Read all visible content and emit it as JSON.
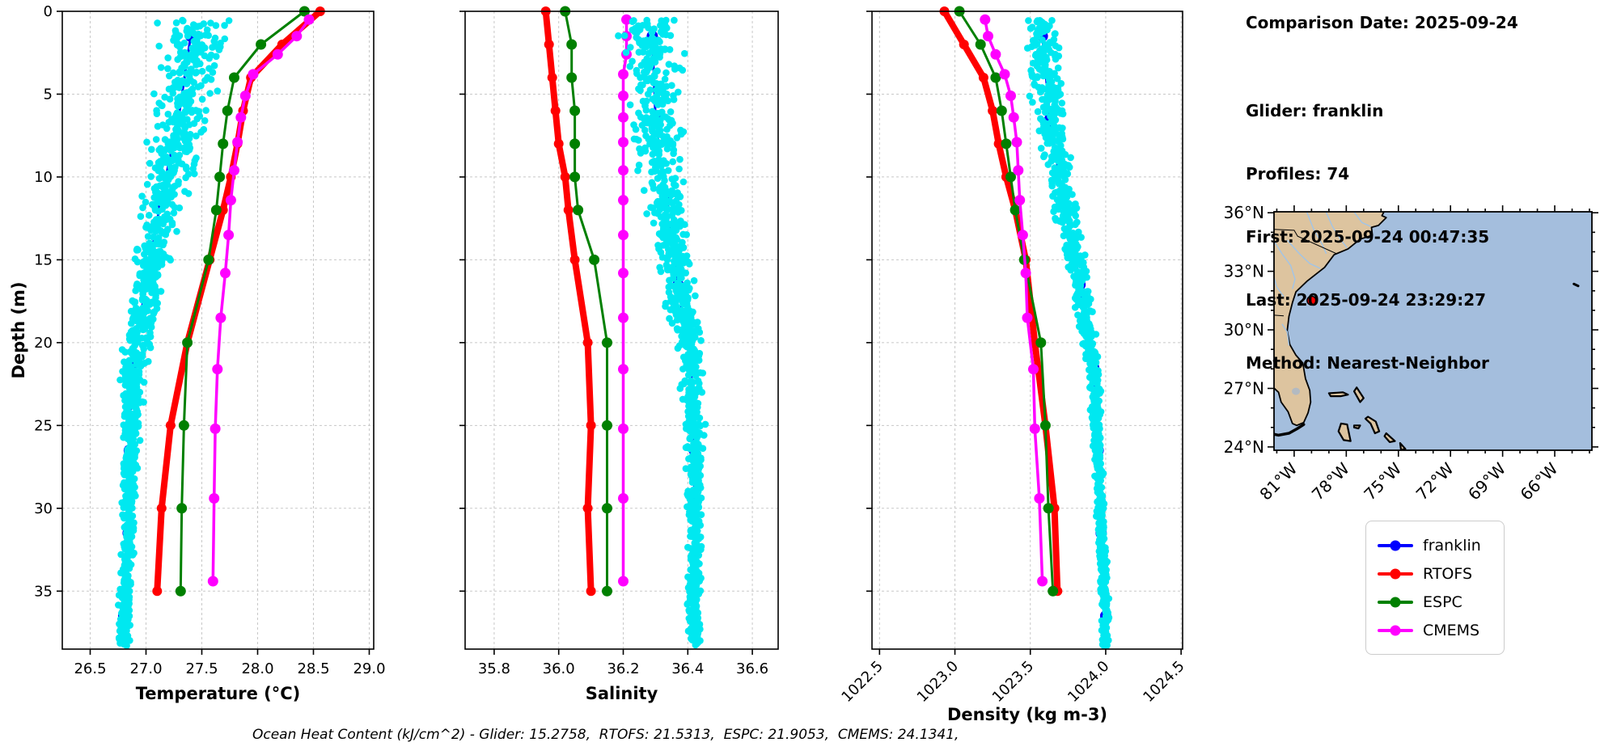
{
  "info_panel": {
    "comparison_date": "Comparison Date: 2025-09-24",
    "glider": "Glider: franklin",
    "profiles": "Profiles: 74",
    "first": "First: 2025-09-24 00:47:35",
    "last": "Last: 2025-09-24 23:29:27",
    "method": "Method: Nearest-Neighbor"
  },
  "caption": {
    "text": "Ocean Heat Content (kJ/cm^2) - Glider: 15.2758,  RTOFS: 21.5313,  ESPC: 21.9053,  CMEMS: 24.1341,"
  },
  "legend": {
    "items": [
      {
        "label": "franklin",
        "color": "#0000ff"
      },
      {
        "label": "RTOFS",
        "color": "#ff0000"
      },
      {
        "label": "ESPC",
        "color": "#008000"
      },
      {
        "label": "CMEMS",
        "color": "#ff00ff"
      }
    ]
  },
  "colors": {
    "glider_line": "#0000ff",
    "glider_scatter": "#00e8f0",
    "rtofs": "#ff0000",
    "espc": "#008000",
    "cmems": "#ff00ff",
    "grid": "#c8c8c8",
    "map_ocean": "#a4bedd",
    "map_land": "#ddc49f",
    "map_river": "#a0c4e8",
    "map_lake": "#b3bac1",
    "marker_red": "#ff0000"
  },
  "chart_data": [
    {
      "type": "line",
      "id": "temperature",
      "xlabel": "Temperature (°C)",
      "ylabel": "Depth (m)",
      "xlim": [
        26.25,
        29.04
      ],
      "ylim": [
        0,
        38.5
      ],
      "xticks": [
        26.5,
        27.0,
        27.5,
        28.0,
        28.5,
        29.0
      ],
      "xtick_labels": [
        "26.5",
        "27.0",
        "27.5",
        "28.0",
        "28.5",
        "29.0"
      ],
      "yticks": [
        0,
        5,
        10,
        15,
        20,
        25,
        30,
        35
      ],
      "show_ytick_labels": true,
      "xtick_rotation": 0,
      "grid": true,
      "series": [
        {
          "name": "franklin",
          "color": "#0000ff",
          "linewidth": 3,
          "marker_r": 7,
          "depths": [
            1.5,
            6.5,
            11.5,
            16.5,
            21.5,
            26.5,
            31.5,
            36.5
          ],
          "values": [
            27.4,
            27.29,
            27.13,
            27.0,
            26.87,
            26.85,
            26.84,
            26.8
          ]
        },
        {
          "name": "RTOFS",
          "color": "#ff0000",
          "linewidth": 8,
          "marker_r": 6,
          "depths": [
            0,
            2,
            4,
            6,
            8,
            10,
            12,
            15,
            20,
            25,
            30,
            35
          ],
          "values": [
            28.56,
            28.22,
            27.94,
            27.87,
            27.82,
            27.76,
            27.69,
            27.57,
            27.37,
            27.22,
            27.14,
            27.1
          ]
        },
        {
          "name": "ESPC",
          "color": "#008000",
          "linewidth": 3,
          "marker_r": 6.5,
          "depths": [
            0,
            2,
            4,
            6,
            8,
            10,
            12,
            15,
            20,
            25,
            30,
            35
          ],
          "values": [
            28.42,
            28.03,
            27.79,
            27.73,
            27.69,
            27.66,
            27.63,
            27.56,
            27.37,
            27.34,
            27.32,
            27.31
          ]
        },
        {
          "name": "CMEMS",
          "color": "#ff00ff",
          "linewidth": 3.5,
          "marker_r": 6.5,
          "depths": [
            0.5,
            1.5,
            2.6,
            3.8,
            5.1,
            6.4,
            7.9,
            9.6,
            11.4,
            13.5,
            15.8,
            18.5,
            21.6,
            25.2,
            29.4,
            34.4
          ],
          "values": [
            28.46,
            28.35,
            28.18,
            27.96,
            27.89,
            27.85,
            27.82,
            27.79,
            27.76,
            27.74,
            27.71,
            27.67,
            27.64,
            27.62,
            27.61,
            27.6
          ]
        }
      ],
      "scatter": {
        "name": "glider-raw-points",
        "color": "#00e8f0",
        "count": 1100,
        "depth_min": 0.5,
        "depth_max": 38.3,
        "spread_top": 0.27,
        "spread_bottom": 0.05,
        "offset": 0.03,
        "seed": 42
      }
    },
    {
      "type": "line",
      "id": "salinity",
      "xlabel": "Salinity",
      "ylabel": "",
      "xlim": [
        35.71,
        36.68
      ],
      "ylim": [
        0,
        38.5
      ],
      "xticks": [
        35.8,
        36.0,
        36.2,
        36.4,
        36.6
      ],
      "xtick_labels": [
        "35.8",
        "36.0",
        "36.2",
        "36.4",
        "36.6"
      ],
      "yticks": [
        0,
        5,
        10,
        15,
        20,
        25,
        30,
        35
      ],
      "show_ytick_labels": false,
      "xtick_rotation": 0,
      "grid": true,
      "series": [
        {
          "name": "franklin",
          "color": "#0000ff",
          "linewidth": 3,
          "marker_r": 7,
          "depths": [
            1.5,
            6.5,
            11.5,
            16.5,
            21.5,
            26.5,
            31.5,
            36.5
          ],
          "values": [
            36.29,
            36.3,
            36.33,
            36.37,
            36.41,
            36.42,
            36.42,
            36.42
          ]
        },
        {
          "name": "RTOFS",
          "color": "#ff0000",
          "linewidth": 8,
          "marker_r": 6,
          "depths": [
            0,
            2,
            4,
            6,
            8,
            10,
            12,
            15,
            20,
            25,
            30,
            35
          ],
          "values": [
            35.96,
            35.97,
            35.98,
            35.99,
            36.0,
            36.02,
            36.03,
            36.05,
            36.09,
            36.1,
            36.09,
            36.1
          ]
        },
        {
          "name": "ESPC",
          "color": "#008000",
          "linewidth": 3,
          "marker_r": 6.5,
          "depths": [
            0,
            2,
            4,
            6,
            8,
            10,
            12,
            15,
            20,
            25,
            30,
            35
          ],
          "values": [
            36.02,
            36.04,
            36.04,
            36.05,
            36.05,
            36.05,
            36.06,
            36.11,
            36.15,
            36.15,
            36.15,
            36.15
          ]
        },
        {
          "name": "CMEMS",
          "color": "#ff00ff",
          "linewidth": 3.5,
          "marker_r": 6.5,
          "depths": [
            0.5,
            1.5,
            2.6,
            3.8,
            5.1,
            6.4,
            7.9,
            9.6,
            11.4,
            13.5,
            15.8,
            18.5,
            21.6,
            25.2,
            29.4,
            34.4
          ],
          "values": [
            36.21,
            36.21,
            36.21,
            36.2,
            36.2,
            36.2,
            36.2,
            36.2,
            36.2,
            36.2,
            36.2,
            36.2,
            36.2,
            36.2,
            36.2,
            36.2
          ]
        }
      ],
      "scatter": {
        "name": "glider-raw-points",
        "color": "#00e8f0",
        "count": 1000,
        "depth_min": 0.5,
        "depth_max": 38.3,
        "spread_top": 0.085,
        "spread_bottom": 0.02,
        "offset": 0.0,
        "seed": 77
      }
    },
    {
      "type": "line",
      "id": "density",
      "xlabel": "Density (kg m-3)",
      "ylabel": "",
      "xlim": [
        1022.45,
        1024.51
      ],
      "ylim": [
        0,
        38.5
      ],
      "xticks": [
        1022.5,
        1023.0,
        1023.5,
        1024.0,
        1024.5
      ],
      "xtick_labels": [
        "1022.5",
        "1023.0",
        "1023.5",
        "1024.0",
        "1024.5"
      ],
      "yticks": [
        0,
        5,
        10,
        15,
        20,
        25,
        30,
        35
      ],
      "show_ytick_labels": false,
      "xtick_rotation": 45,
      "grid": true,
      "series": [
        {
          "name": "franklin",
          "color": "#0000ff",
          "linewidth": 3,
          "marker_r": 7,
          "depths": [
            1.5,
            6.5,
            11.5,
            16.5,
            21.5,
            26.5,
            31.5,
            36.5
          ],
          "values": [
            1023.58,
            1023.63,
            1023.72,
            1023.83,
            1023.92,
            1023.95,
            1023.97,
            1024.0
          ]
        },
        {
          "name": "RTOFS",
          "color": "#ff0000",
          "linewidth": 8,
          "marker_r": 6,
          "depths": [
            0,
            2,
            4,
            6,
            8,
            10,
            12,
            15,
            20,
            25,
            30,
            35
          ],
          "values": [
            1022.93,
            1023.06,
            1023.19,
            1023.25,
            1023.29,
            1023.34,
            1023.4,
            1023.47,
            1023.53,
            1023.6,
            1023.66,
            1023.68
          ]
        },
        {
          "name": "ESPC",
          "color": "#008000",
          "linewidth": 3,
          "marker_r": 6.5,
          "depths": [
            0,
            2,
            4,
            6,
            8,
            10,
            12,
            15,
            20,
            25,
            30,
            35
          ],
          "values": [
            1023.03,
            1023.17,
            1023.27,
            1023.31,
            1023.34,
            1023.37,
            1023.4,
            1023.46,
            1023.57,
            1023.6,
            1023.62,
            1023.65
          ]
        },
        {
          "name": "CMEMS",
          "color": "#ff00ff",
          "linewidth": 3.5,
          "marker_r": 6.5,
          "depths": [
            0.5,
            1.5,
            2.6,
            3.8,
            5.1,
            6.4,
            7.9,
            9.6,
            11.4,
            13.5,
            15.8,
            18.5,
            21.6,
            25.2,
            29.4,
            34.4
          ],
          "values": [
            1023.2,
            1023.22,
            1023.27,
            1023.33,
            1023.37,
            1023.39,
            1023.41,
            1023.42,
            1023.43,
            1023.45,
            1023.47,
            1023.48,
            1023.52,
            1023.53,
            1023.56,
            1023.58
          ]
        }
      ],
      "scatter": {
        "name": "glider-raw-points",
        "color": "#00e8f0",
        "count": 1000,
        "depth_min": 0.5,
        "depth_max": 38.3,
        "spread_top": 0.11,
        "spread_bottom": 0.022,
        "offset": 0.0,
        "seed": 123
      }
    }
  ],
  "map": {
    "extent": {
      "lon_min": -82.16,
      "lon_max": -63.86,
      "lat_min": 23.83,
      "lat_max": 36.05
    },
    "lon_ticks": [
      {
        "v": -81,
        "label": "81°W"
      },
      {
        "v": -78,
        "label": "78°W"
      },
      {
        "v": -75,
        "label": "75°W"
      },
      {
        "v": -72,
        "label": "72°W"
      },
      {
        "v": -69,
        "label": "69°W"
      },
      {
        "v": -66,
        "label": "66°W"
      }
    ],
    "lat_ticks": [
      {
        "v": 36,
        "label": "36°N"
      },
      {
        "v": 33,
        "label": "33°N"
      },
      {
        "v": 30,
        "label": "30°N"
      },
      {
        "v": 27,
        "label": "27°N"
      },
      {
        "v": 24,
        "label": "24°N"
      }
    ],
    "glider_marker": {
      "lon": -80.0,
      "lat": 31.5
    },
    "mainland": [
      [
        -82.2,
        36.1
      ],
      [
        -75.8,
        36.1
      ],
      [
        -75.95,
        35.85
      ],
      [
        -75.7,
        35.75
      ],
      [
        -76.15,
        35.35
      ],
      [
        -76.55,
        35.25
      ],
      [
        -76.5,
        34.85
      ],
      [
        -77.2,
        34.65
      ],
      [
        -77.9,
        34.15
      ],
      [
        -78.7,
        33.85
      ],
      [
        -79.25,
        33.2
      ],
      [
        -80.25,
        32.5
      ],
      [
        -80.9,
        31.95
      ],
      [
        -81.1,
        31.4
      ],
      [
        -81.3,
        30.7
      ],
      [
        -81.4,
        29.95
      ],
      [
        -81.25,
        29.25
      ],
      [
        -80.9,
        28.7
      ],
      [
        -80.5,
        28.3
      ],
      [
        -80.35,
        27.5
      ],
      [
        -80.1,
        26.9
      ],
      [
        -80.05,
        26.3
      ],
      [
        -80.2,
        25.75
      ],
      [
        -80.45,
        25.25
      ],
      [
        -80.85,
        25.1
      ],
      [
        -81.1,
        25.2
      ],
      [
        -81.35,
        25.8
      ],
      [
        -81.75,
        26.3
      ],
      [
        -81.9,
        26.8
      ],
      [
        -82.2,
        27.05
      ]
    ],
    "islands": [
      [
        [
          -79.0,
          26.75
        ],
        [
          -78.2,
          26.8
        ],
        [
          -77.9,
          26.68
        ],
        [
          -78.3,
          26.6
        ],
        [
          -78.9,
          26.6
        ]
      ],
      [
        [
          -77.4,
          27.05
        ],
        [
          -77.0,
          26.5
        ],
        [
          -77.2,
          26.3
        ],
        [
          -77.55,
          26.85
        ]
      ],
      [
        [
          -78.3,
          25.2
        ],
        [
          -77.95,
          25.15
        ],
        [
          -77.75,
          24.3
        ],
        [
          -78.15,
          24.35
        ],
        [
          -78.45,
          24.8
        ]
      ],
      [
        [
          -77.55,
          25.1
        ],
        [
          -77.2,
          25.1
        ],
        [
          -77.3,
          24.95
        ],
        [
          -77.55,
          25.0
        ]
      ],
      [
        [
          -76.75,
          25.55
        ],
        [
          -76.3,
          25.3
        ],
        [
          -76.1,
          24.8
        ],
        [
          -76.35,
          24.7
        ],
        [
          -76.6,
          25.2
        ],
        [
          -76.9,
          25.45
        ]
      ],
      [
        [
          -75.7,
          24.7
        ],
        [
          -75.2,
          24.3
        ],
        [
          -75.5,
          24.25
        ],
        [
          -75.8,
          24.55
        ]
      ],
      [
        [
          -74.9,
          24.2
        ],
        [
          -74.6,
          23.9
        ],
        [
          -74.85,
          23.85
        ]
      ]
    ],
    "keys_line": [
      [
        -80.45,
        25.15
      ],
      [
        -80.8,
        24.95
      ],
      [
        -81.3,
        24.7
      ],
      [
        -81.9,
        24.6
      ],
      [
        -82.16,
        24.65
      ]
    ],
    "bermuda_line": [
      [
        -64.9,
        32.35
      ],
      [
        -64.65,
        32.25
      ]
    ],
    "rivers": [
      [
        [
          -77.6,
          36.1
        ],
        [
          -77.1,
          35.5
        ],
        [
          -76.6,
          35.3
        ]
      ],
      [
        [
          -79.2,
          36.1
        ],
        [
          -78.8,
          35.3
        ],
        [
          -78.3,
          34.6
        ],
        [
          -77.95,
          34.2
        ]
      ],
      [
        [
          -80.3,
          36.1
        ],
        [
          -79.9,
          35.2
        ],
        [
          -79.4,
          34.4
        ],
        [
          -79.15,
          33.9
        ]
      ],
      [
        [
          -81.4,
          34.6
        ],
        [
          -80.7,
          33.9
        ],
        [
          -80.1,
          33.4
        ],
        [
          -79.5,
          33.15
        ]
      ],
      [
        [
          -82.16,
          34.55
        ],
        [
          -81.7,
          33.9
        ],
        [
          -81.2,
          33.3
        ],
        [
          -80.95,
          32.6
        ],
        [
          -81.1,
          32.1
        ]
      ],
      [
        [
          -82.16,
          32.7
        ],
        [
          -82.0,
          32.2
        ],
        [
          -81.6,
          31.7
        ]
      ],
      [
        [
          -81.7,
          30.3
        ],
        [
          -81.4,
          29.9
        ],
        [
          -81.3,
          29.2
        ]
      ]
    ],
    "borders": [
      [
        [
          -82.16,
          35.15
        ],
        [
          -81.0,
          35.1
        ],
        [
          -80.8,
          34.8
        ],
        [
          -78.55,
          33.9
        ]
      ],
      [
        [
          -82.16,
          30.75
        ],
        [
          -81.6,
          30.72
        ]
      ]
    ],
    "lake": {
      "lon": -80.9,
      "lat": 26.85,
      "r": 5
    }
  }
}
